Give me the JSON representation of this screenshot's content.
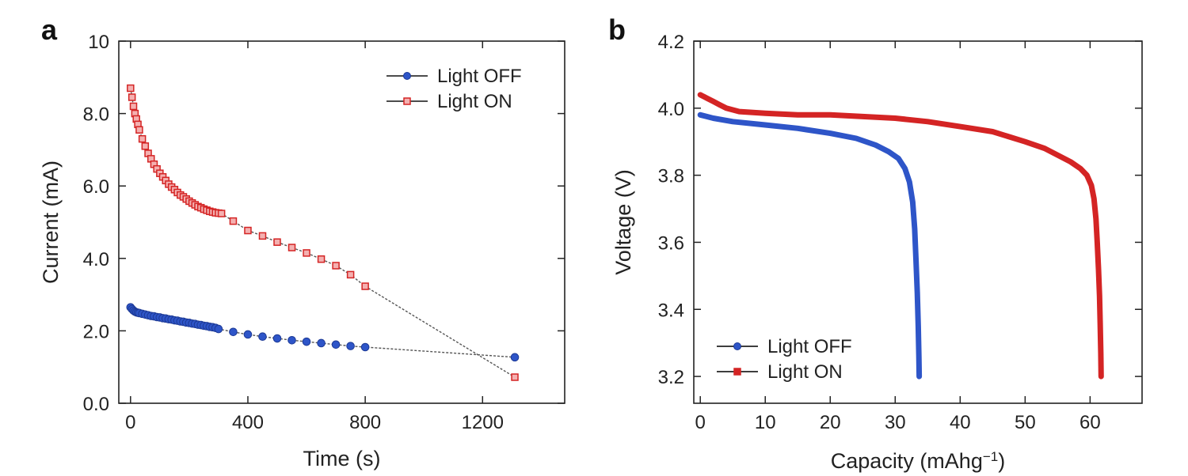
{
  "chart_data": [
    {
      "panel_label": "a",
      "type": "line",
      "xlabel": "Time (s)",
      "ylabel": "Current (mA)",
      "xlim": [
        -40,
        1480
      ],
      "ylim": [
        0,
        10
      ],
      "xticks": [
        0,
        400,
        800,
        1200
      ],
      "xtick_labels": [
        "0",
        "400",
        "800",
        "1200"
      ],
      "yticks": [
        0,
        2,
        4,
        6,
        8,
        10
      ],
      "ytick_labels": [
        "0.0",
        "2.0",
        "4.0",
        "6.0",
        "8.0",
        "10"
      ],
      "grid": false,
      "legend_position": "top-right",
      "series": [
        {
          "name": "Light OFF",
          "color": "#2e55c8",
          "marker": "circle",
          "x": [
            0,
            5,
            10,
            15,
            20,
            25,
            30,
            40,
            50,
            60,
            70,
            80,
            90,
            100,
            110,
            120,
            130,
            140,
            150,
            160,
            170,
            180,
            190,
            200,
            210,
            220,
            230,
            240,
            250,
            260,
            270,
            280,
            290,
            300,
            350,
            400,
            450,
            500,
            550,
            600,
            650,
            700,
            750,
            800,
            1310
          ],
          "y": [
            2.65,
            2.6,
            2.56,
            2.53,
            2.51,
            2.5,
            2.49,
            2.47,
            2.45,
            2.43,
            2.41,
            2.4,
            2.38,
            2.37,
            2.35,
            2.34,
            2.32,
            2.31,
            2.29,
            2.28,
            2.26,
            2.25,
            2.23,
            2.22,
            2.2,
            2.19,
            2.17,
            2.16,
            2.14,
            2.13,
            2.11,
            2.1,
            2.08,
            2.05,
            1.97,
            1.9,
            1.84,
            1.79,
            1.74,
            1.7,
            1.66,
            1.62,
            1.58,
            1.55,
            1.27
          ]
        },
        {
          "name": "Light ON",
          "color": "#d42424",
          "marker": "square",
          "x": [
            0,
            5,
            10,
            15,
            20,
            25,
            30,
            40,
            50,
            60,
            70,
            80,
            90,
            100,
            110,
            120,
            130,
            140,
            150,
            160,
            170,
            180,
            190,
            200,
            210,
            220,
            230,
            240,
            250,
            260,
            270,
            280,
            290,
            300,
            310,
            350,
            400,
            450,
            500,
            550,
            600,
            650,
            700,
            750,
            800,
            1310
          ],
          "y": [
            8.7,
            8.45,
            8.2,
            8.0,
            7.85,
            7.7,
            7.55,
            7.3,
            7.1,
            6.9,
            6.75,
            6.6,
            6.47,
            6.35,
            6.25,
            6.15,
            6.05,
            5.97,
            5.9,
            5.82,
            5.75,
            5.7,
            5.64,
            5.58,
            5.53,
            5.48,
            5.43,
            5.4,
            5.36,
            5.33,
            5.3,
            5.28,
            5.26,
            5.25,
            5.24,
            5.03,
            4.77,
            4.62,
            4.45,
            4.3,
            4.15,
            3.98,
            3.8,
            3.55,
            3.23,
            0.72
          ]
        }
      ]
    },
    {
      "panel_label": "b",
      "type": "line",
      "xlabel": "Capacity (mAhg",
      "xlabel_sup": "−1",
      "xlabel_close": ")",
      "ylabel": "Voltage (V)",
      "xlim": [
        -1,
        68
      ],
      "ylim": [
        3.12,
        4.2
      ],
      "xticks": [
        0,
        10,
        20,
        30,
        40,
        50,
        60
      ],
      "xtick_labels": [
        "0",
        "10",
        "20",
        "30",
        "40",
        "50",
        "60"
      ],
      "yticks": [
        3.2,
        3.4,
        3.6,
        3.8,
        4.0,
        4.2
      ],
      "ytick_labels": [
        "3.2",
        "3.4",
        "3.6",
        "3.8",
        "4.0",
        "4.2"
      ],
      "grid": false,
      "legend_position": "bottom-left",
      "series": [
        {
          "name": "Light OFF",
          "color": "#2e55c8",
          "marker": "circle",
          "x": [
            0,
            2,
            5,
            10,
            15,
            20,
            24,
            27,
            29,
            30.5,
            31.5,
            32.2,
            32.7,
            33.0,
            33.2,
            33.4,
            33.55,
            33.65,
            33.7
          ],
          "y": [
            3.98,
            3.97,
            3.96,
            3.95,
            3.94,
            3.925,
            3.91,
            3.89,
            3.87,
            3.85,
            3.82,
            3.78,
            3.72,
            3.64,
            3.55,
            3.45,
            3.35,
            3.26,
            3.2
          ]
        },
        {
          "name": "Light ON",
          "color": "#d42424",
          "marker": "square",
          "x": [
            0,
            1,
            2,
            3,
            4,
            6,
            10,
            15,
            20,
            25,
            30,
            35,
            40,
            45,
            50,
            53,
            55,
            57,
            58.5,
            59.5,
            60.2,
            60.6,
            60.9,
            61.1,
            61.3,
            61.45,
            61.55,
            61.65,
            61.7
          ],
          "y": [
            4.04,
            4.03,
            4.02,
            4.01,
            4.0,
            3.99,
            3.985,
            3.98,
            3.98,
            3.975,
            3.97,
            3.96,
            3.945,
            3.93,
            3.9,
            3.88,
            3.86,
            3.84,
            3.82,
            3.8,
            3.77,
            3.73,
            3.67,
            3.6,
            3.52,
            3.44,
            3.36,
            3.27,
            3.2
          ]
        }
      ]
    }
  ]
}
